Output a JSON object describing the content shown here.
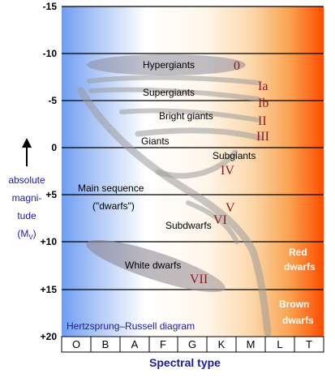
{
  "title": "Hertzsprung–Russell diagram",
  "y_axis": {
    "label_lines": [
      "absolute",
      "magni-",
      "tude"
    ],
    "symbol": "(M",
    "symbol_sub": "V",
    "symbol_end": ")",
    "ticks": [
      "-15",
      "-10",
      "-5",
      "0",
      "+5",
      "+10",
      "+15",
      "+20"
    ]
  },
  "x_axis": {
    "label": "Spectral type",
    "classes": [
      "O",
      "B",
      "A",
      "F",
      "G",
      "K",
      "M",
      "L",
      "T"
    ]
  },
  "regions": {
    "hypergiants": "Hypergiants",
    "supergiants": "Supergiants",
    "bright_giants": "Bright giants",
    "giants": "Giants",
    "subgiants": "Subgiants",
    "main_sequence": "Main sequence",
    "dwarfs": "(\"dwarfs\")",
    "subdwarfs": "Subdwarfs",
    "white_dwarfs": "White dwarfs",
    "red_dwarfs_1": "Red",
    "red_dwarfs_2": "dwarfs",
    "brown_dwarfs_1": "Brown",
    "brown_dwarfs_2": "dwarfs"
  },
  "luminosity_classes": {
    "c0": "0",
    "cIa": "Ia",
    "cIb": "Ib",
    "cII": "II",
    "cIII": "III",
    "cIV": "IV",
    "cV": "V",
    "cVI": "VI",
    "cVII": "VII"
  },
  "colors": {
    "hot": "#6f9cf2",
    "mid": "#ffffff",
    "warm": "#fbc27a",
    "cool": "#ff5a00",
    "band": "#a9a9a9",
    "class_label": "#8a1a1a",
    "axis_title": "#1a1aa0"
  }
}
